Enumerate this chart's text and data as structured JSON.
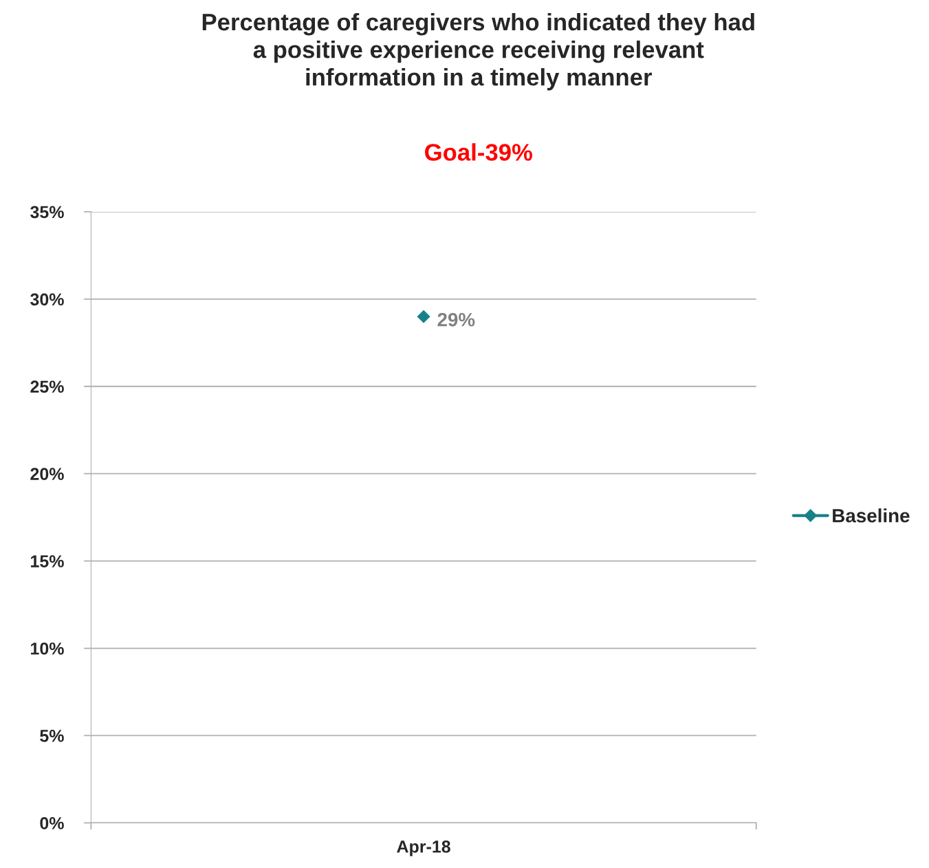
{
  "chart_data": {
    "type": "line",
    "title": "Percentage of caregivers who indicated they had\na positive experience receiving relevant\ninformation in a timely manner",
    "subtitle": "Goal-39%",
    "categories": [
      "Apr-18"
    ],
    "series": [
      {
        "name": "Baseline",
        "color": "#17818a",
        "values": [
          29
        ],
        "value_labels": [
          "29%"
        ]
      }
    ],
    "ylim": [
      0,
      35
    ],
    "yticks": [
      {
        "value": 0,
        "label": "0%"
      },
      {
        "value": 5,
        "label": "5%"
      },
      {
        "value": 10,
        "label": "10%"
      },
      {
        "value": 15,
        "label": "15%"
      },
      {
        "value": 20,
        "label": "20%"
      },
      {
        "value": 25,
        "label": "25%"
      },
      {
        "value": 30,
        "label": "30%"
      },
      {
        "value": 35,
        "label": "35%"
      }
    ],
    "grid": "y",
    "legend": "right",
    "marker": "diamond",
    "line_style": "solid"
  }
}
